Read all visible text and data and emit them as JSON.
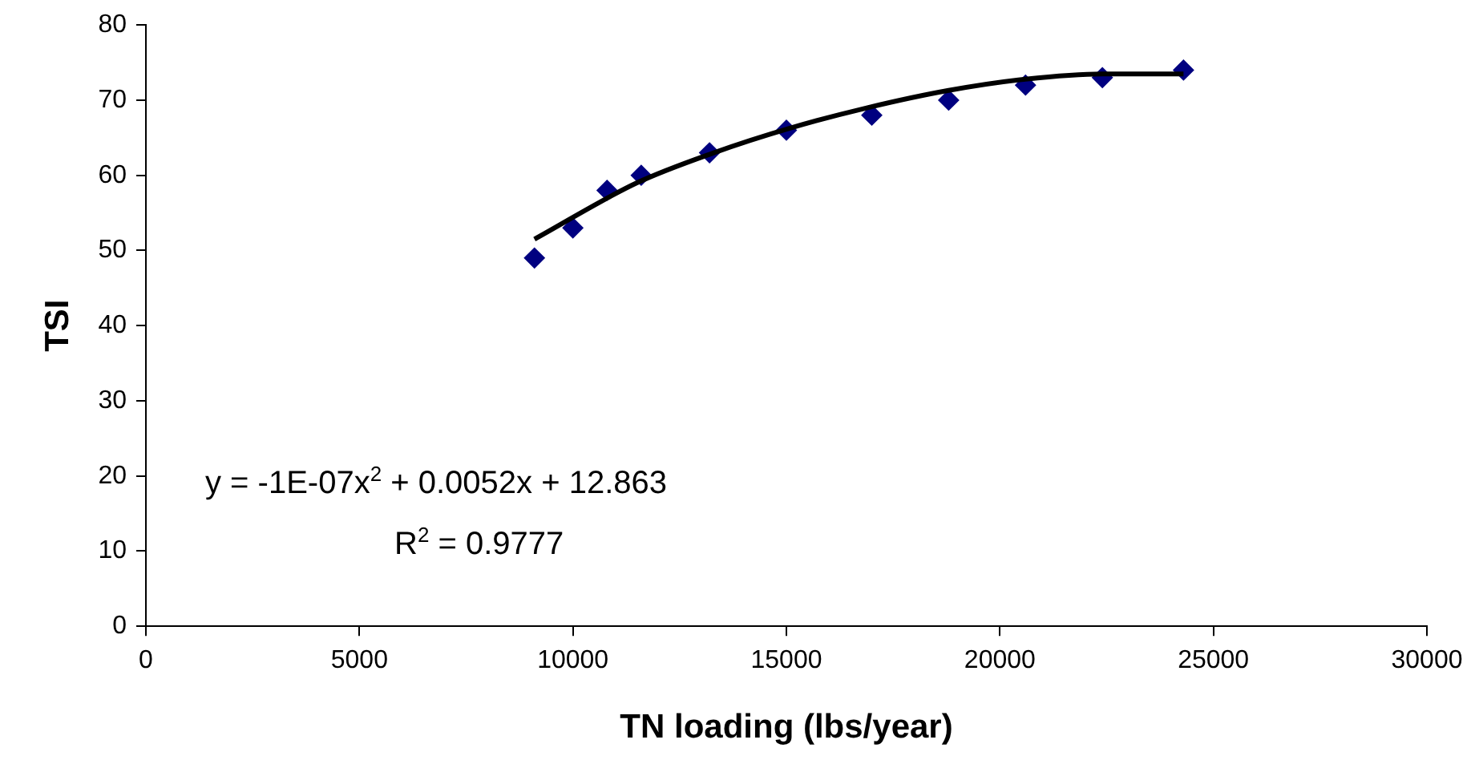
{
  "chart_data": {
    "type": "scatter",
    "xlabel": "TN loading (lbs/year)",
    "ylabel": "TSI",
    "xlim": [
      0,
      30000
    ],
    "xticks": [
      0,
      5000,
      10000,
      15000,
      20000,
      25000,
      30000
    ],
    "ylim": [
      0,
      80
    ],
    "yticks": [
      0,
      10,
      20,
      30,
      40,
      50,
      60,
      70,
      80
    ],
    "grid": false,
    "legend": false,
    "marker": "diamond",
    "series": [
      {
        "color": "#000080",
        "x": [
          9100,
          10000,
          10800,
          11600,
          13200,
          15000,
          17000,
          18800,
          20600,
          22400,
          24300
        ],
        "values": [
          49,
          53,
          58,
          60,
          63,
          66,
          68,
          70,
          72,
          73,
          74
        ]
      },
      {
        "type": "line",
        "color": "#000000",
        "marker": "none",
        "x": [
          9100,
          11500,
          13300,
          15100,
          16900,
          18800,
          20600,
          22400,
          24300
        ],
        "values": [
          51.5,
          59,
          63,
          66.3,
          69,
          71.3,
          72.8,
          73.5,
          73.5
        ]
      }
    ],
    "annotations": [
      "y = -1E-07x$^{2}$ + 0.0052x + 12.863",
      "R$^{2}$ = 0.9777"
    ]
  }
}
